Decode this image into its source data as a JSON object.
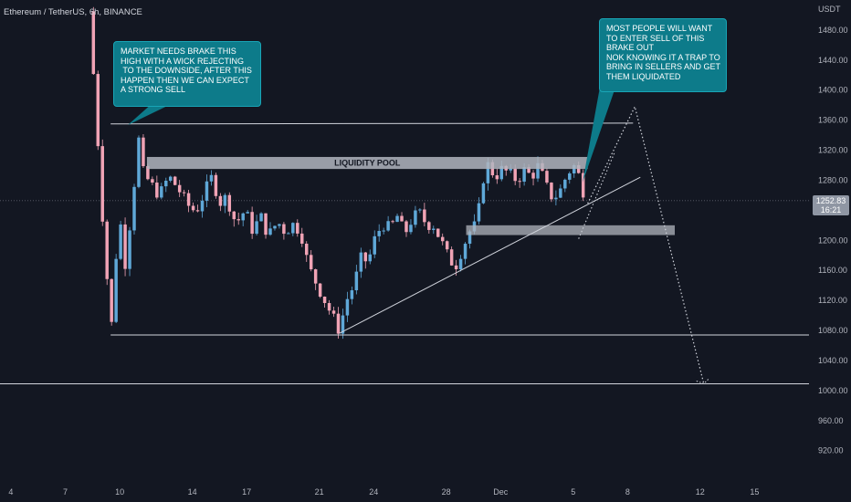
{
  "header": {
    "symbol_title": "Ethereum / TetherUS, 6h, BINANCE",
    "currency": "USDT"
  },
  "last_price": {
    "value": "1252.83",
    "countdown": "16:21",
    "color": "#8f96a3"
  },
  "annotations": {
    "callout_left": "MARKET NEEDS BRAKE THIS\nHIGH WITH A WICK REJECTING\n TO THE DOWNSIDE, AFTER THIS\nHAPPEN THEN WE CAN EXPECT\nA STRONG SELL",
    "callout_right": "MOST PEOPLE WILL WANT\nTO ENTER SELL OF THIS\nBRAKE OUT\nNOK KNOWING IT A TRAP TO\nBRING IN SELLERS AND GET\nTHEM LIQUIDATED",
    "liquidity_label": "LIQUIDITY POOL"
  },
  "colors": {
    "background": "#131722",
    "up": "#5fa8d8",
    "down": "#f0a3b5",
    "callout": "#0d7b8a",
    "zone": "#b2b5be"
  },
  "chart_data": {
    "type": "candlestick",
    "y_ticks": [
      1480,
      1440,
      1400,
      1360,
      1320,
      1280,
      1200,
      1160,
      1120,
      1080,
      1040,
      1000,
      960,
      920
    ],
    "x_ticks": [
      {
        "label": "4",
        "day": 4
      },
      {
        "label": "7",
        "day": 7
      },
      {
        "label": "10",
        "day": 10
      },
      {
        "label": "14",
        "day": 14
      },
      {
        "label": "17",
        "day": 17
      },
      {
        "label": "21",
        "day": 21
      },
      {
        "label": "24",
        "day": 24
      },
      {
        "label": "28",
        "day": 28
      },
      {
        "label": "Dec",
        "day": 31
      },
      {
        "label": "5",
        "day": 35
      },
      {
        "label": "8",
        "day": 38
      },
      {
        "label": "12",
        "day": 42
      },
      {
        "label": "15",
        "day": 45
      }
    ],
    "ylim": [
      888,
      1520
    ],
    "xlim": [
      3.4,
      48
    ],
    "levels": {
      "resistance_high": 1354,
      "support_low": 1074,
      "target_low": 1009
    },
    "liquidity_zone": {
      "x_start": 11.5,
      "x_end": 35.8,
      "y_top": 1311,
      "y_bottom": 1295
    },
    "demand_zone": {
      "x_start": 29.1,
      "x_end": 40.6,
      "y_top": 1220,
      "y_bottom": 1207
    },
    "trendline": {
      "x_start": 22.1,
      "y_start": 1076,
      "x_end": 38.7,
      "y_end": 1284
    },
    "top_line": {
      "x_start": 9.5,
      "y_start": 1355,
      "x_end": 38.3,
      "y_end": 1356
    },
    "projection": [
      [
        35.8,
        1249
      ],
      [
        38.4,
        1378
      ],
      [
        42.2,
        1009
      ]
    ],
    "projection_minor": [
      [
        35.3,
        1202
      ],
      [
        37.3,
        1318
      ]
    ],
    "price_path": [
      [
        8.3,
        1505
      ],
      [
        8.5,
        1440
      ],
      [
        8.8,
        1330
      ],
      [
        9.0,
        1250
      ],
      [
        9.2,
        1180
      ],
      [
        9.4,
        1120
      ],
      [
        9.6,
        1078
      ],
      [
        9.8,
        1180
      ],
      [
        10.0,
        1230
      ],
      [
        10.3,
        1170
      ],
      [
        10.6,
        1230
      ],
      [
        10.9,
        1300
      ],
      [
        11.1,
        1345
      ],
      [
        11.3,
        1290
      ],
      [
        11.7,
        1275
      ],
      [
        12.2,
        1260
      ],
      [
        12.7,
        1285
      ],
      [
        13.2,
        1270
      ],
      [
        13.7,
        1248
      ],
      [
        14.2,
        1238
      ],
      [
        14.7,
        1265
      ],
      [
        15.1,
        1285
      ],
      [
        15.5,
        1250
      ],
      [
        15.9,
        1258
      ],
      [
        16.4,
        1222
      ],
      [
        16.9,
        1240
      ],
      [
        17.3,
        1215
      ],
      [
        17.8,
        1230
      ],
      [
        18.2,
        1206
      ],
      [
        18.7,
        1225
      ],
      [
        19.1,
        1212
      ],
      [
        19.6,
        1222
      ],
      [
        20.0,
        1210
      ],
      [
        20.4,
        1165
      ],
      [
        20.9,
        1140
      ],
      [
        21.3,
        1120
      ],
      [
        21.7,
        1100
      ],
      [
        22.1,
        1080
      ],
      [
        22.5,
        1120
      ],
      [
        22.9,
        1140
      ],
      [
        23.3,
        1175
      ],
      [
        23.7,
        1172
      ],
      [
        24.1,
        1205
      ],
      [
        24.5,
        1222
      ],
      [
        24.9,
        1215
      ],
      [
        25.3,
        1232
      ],
      [
        25.7,
        1208
      ],
      [
        26.1,
        1228
      ],
      [
        26.5,
        1237
      ],
      [
        26.9,
        1222
      ],
      [
        27.3,
        1220
      ],
      [
        27.7,
        1200
      ],
      [
        28.1,
        1178
      ],
      [
        28.5,
        1165
      ],
      [
        28.9,
        1190
      ],
      [
        29.3,
        1212
      ],
      [
        29.7,
        1222
      ],
      [
        30.0,
        1280
      ],
      [
        30.3,
        1300
      ],
      [
        30.7,
        1285
      ],
      [
        31.1,
        1295
      ],
      [
        31.5,
        1288
      ],
      [
        31.9,
        1280
      ],
      [
        32.3,
        1293
      ],
      [
        32.7,
        1285
      ],
      [
        33.1,
        1300
      ],
      [
        33.5,
        1272
      ],
      [
        33.9,
        1255
      ],
      [
        34.3,
        1267
      ],
      [
        34.7,
        1290
      ],
      [
        35.1,
        1300
      ],
      [
        35.4,
        1280
      ],
      [
        35.7,
        1252
      ]
    ]
  }
}
